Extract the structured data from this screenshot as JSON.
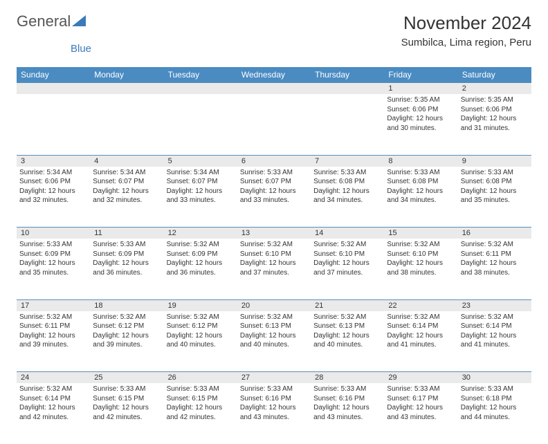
{
  "logo": {
    "text1": "General",
    "text2": "Blue"
  },
  "title": "November 2024",
  "location": "Sumbilca, Lima region, Peru",
  "header_bg": "#4a8bc2",
  "daynum_bg": "#eaeaea",
  "border_color": "#5a8cb8",
  "dayHeaders": [
    "Sunday",
    "Monday",
    "Tuesday",
    "Wednesday",
    "Thursday",
    "Friday",
    "Saturday"
  ],
  "weeks": [
    [
      null,
      null,
      null,
      null,
      null,
      {
        "n": "1",
        "sr": "5:35 AM",
        "ss": "6:06 PM",
        "dl": "12 hours and 30 minutes."
      },
      {
        "n": "2",
        "sr": "5:35 AM",
        "ss": "6:06 PM",
        "dl": "12 hours and 31 minutes."
      }
    ],
    [
      {
        "n": "3",
        "sr": "5:34 AM",
        "ss": "6:06 PM",
        "dl": "12 hours and 32 minutes."
      },
      {
        "n": "4",
        "sr": "5:34 AM",
        "ss": "6:07 PM",
        "dl": "12 hours and 32 minutes."
      },
      {
        "n": "5",
        "sr": "5:34 AM",
        "ss": "6:07 PM",
        "dl": "12 hours and 33 minutes."
      },
      {
        "n": "6",
        "sr": "5:33 AM",
        "ss": "6:07 PM",
        "dl": "12 hours and 33 minutes."
      },
      {
        "n": "7",
        "sr": "5:33 AM",
        "ss": "6:08 PM",
        "dl": "12 hours and 34 minutes."
      },
      {
        "n": "8",
        "sr": "5:33 AM",
        "ss": "6:08 PM",
        "dl": "12 hours and 34 minutes."
      },
      {
        "n": "9",
        "sr": "5:33 AM",
        "ss": "6:08 PM",
        "dl": "12 hours and 35 minutes."
      }
    ],
    [
      {
        "n": "10",
        "sr": "5:33 AM",
        "ss": "6:09 PM",
        "dl": "12 hours and 35 minutes."
      },
      {
        "n": "11",
        "sr": "5:33 AM",
        "ss": "6:09 PM",
        "dl": "12 hours and 36 minutes."
      },
      {
        "n": "12",
        "sr": "5:32 AM",
        "ss": "6:09 PM",
        "dl": "12 hours and 36 minutes."
      },
      {
        "n": "13",
        "sr": "5:32 AM",
        "ss": "6:10 PM",
        "dl": "12 hours and 37 minutes."
      },
      {
        "n": "14",
        "sr": "5:32 AM",
        "ss": "6:10 PM",
        "dl": "12 hours and 37 minutes."
      },
      {
        "n": "15",
        "sr": "5:32 AM",
        "ss": "6:10 PM",
        "dl": "12 hours and 38 minutes."
      },
      {
        "n": "16",
        "sr": "5:32 AM",
        "ss": "6:11 PM",
        "dl": "12 hours and 38 minutes."
      }
    ],
    [
      {
        "n": "17",
        "sr": "5:32 AM",
        "ss": "6:11 PM",
        "dl": "12 hours and 39 minutes."
      },
      {
        "n": "18",
        "sr": "5:32 AM",
        "ss": "6:12 PM",
        "dl": "12 hours and 39 minutes."
      },
      {
        "n": "19",
        "sr": "5:32 AM",
        "ss": "6:12 PM",
        "dl": "12 hours and 40 minutes."
      },
      {
        "n": "20",
        "sr": "5:32 AM",
        "ss": "6:13 PM",
        "dl": "12 hours and 40 minutes."
      },
      {
        "n": "21",
        "sr": "5:32 AM",
        "ss": "6:13 PM",
        "dl": "12 hours and 40 minutes."
      },
      {
        "n": "22",
        "sr": "5:32 AM",
        "ss": "6:14 PM",
        "dl": "12 hours and 41 minutes."
      },
      {
        "n": "23",
        "sr": "5:32 AM",
        "ss": "6:14 PM",
        "dl": "12 hours and 41 minutes."
      }
    ],
    [
      {
        "n": "24",
        "sr": "5:32 AM",
        "ss": "6:14 PM",
        "dl": "12 hours and 42 minutes."
      },
      {
        "n": "25",
        "sr": "5:33 AM",
        "ss": "6:15 PM",
        "dl": "12 hours and 42 minutes."
      },
      {
        "n": "26",
        "sr": "5:33 AM",
        "ss": "6:15 PM",
        "dl": "12 hours and 42 minutes."
      },
      {
        "n": "27",
        "sr": "5:33 AM",
        "ss": "6:16 PM",
        "dl": "12 hours and 43 minutes."
      },
      {
        "n": "28",
        "sr": "5:33 AM",
        "ss": "6:16 PM",
        "dl": "12 hours and 43 minutes."
      },
      {
        "n": "29",
        "sr": "5:33 AM",
        "ss": "6:17 PM",
        "dl": "12 hours and 43 minutes."
      },
      {
        "n": "30",
        "sr": "5:33 AM",
        "ss": "6:18 PM",
        "dl": "12 hours and 44 minutes."
      }
    ]
  ]
}
